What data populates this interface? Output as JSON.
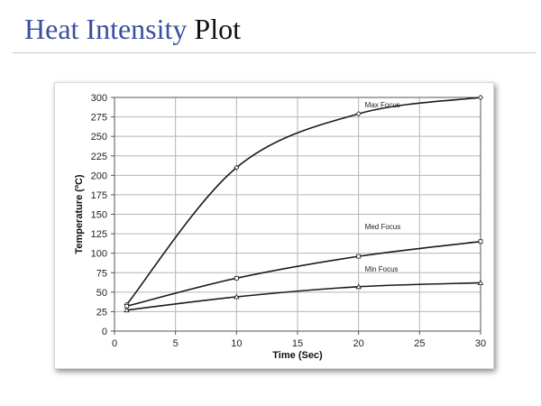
{
  "slide": {
    "title_accent": "Heat Intensity",
    "title_plain": "Plot",
    "accent_color": "#3a4fa0"
  },
  "chart_data": {
    "type": "line",
    "title": "",
    "xlabel": "Time  (Sec)",
    "ylabel": "Temperature (ºC)",
    "xlim": [
      0,
      30
    ],
    "ylim": [
      0,
      300
    ],
    "x_ticks": [
      0,
      5,
      10,
      15,
      20,
      25,
      30
    ],
    "y_ticks": [
      0,
      25,
      50,
      75,
      100,
      125,
      150,
      175,
      200,
      225,
      250,
      275,
      300
    ],
    "grid": true,
    "legend": "none",
    "series": [
      {
        "name": "Max Focus",
        "marker": "diamond",
        "x": [
          1,
          10,
          20,
          30
        ],
        "y": [
          34,
          210,
          279,
          300
        ]
      },
      {
        "name": "Med Focus",
        "marker": "square",
        "x": [
          1,
          10,
          20,
          30
        ],
        "y": [
          32,
          68,
          96,
          115
        ]
      },
      {
        "name": "Min Focus",
        "marker": "triangle",
        "x": [
          1,
          10,
          20,
          30
        ],
        "y": [
          27,
          44,
          57,
          62
        ]
      }
    ]
  }
}
